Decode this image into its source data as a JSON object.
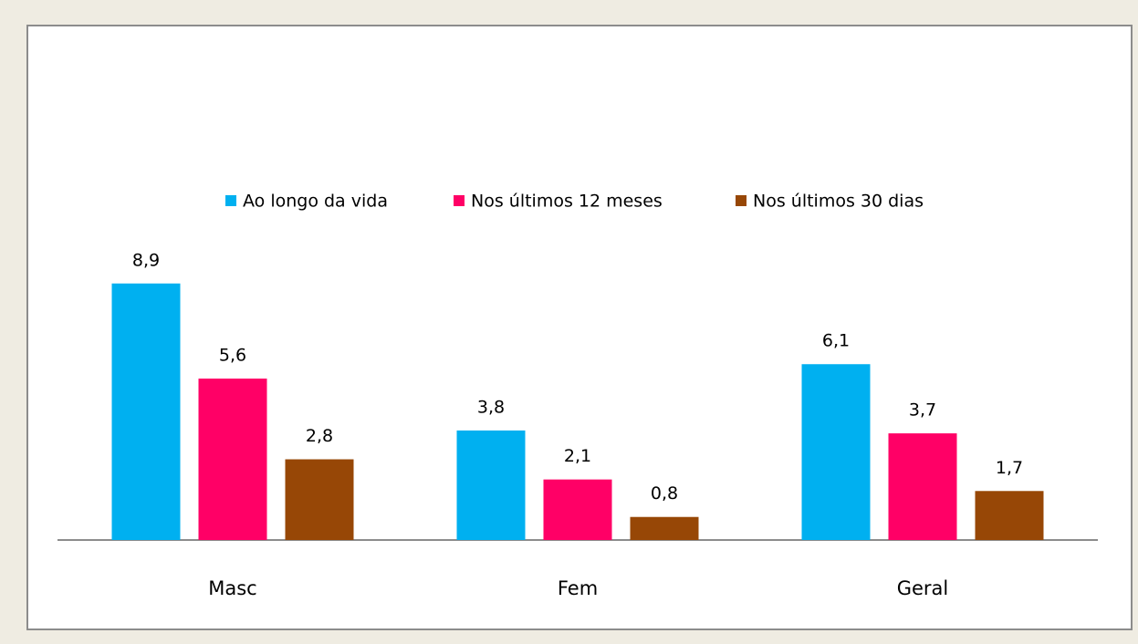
{
  "chart_data": {
    "type": "bar",
    "categories": [
      "Masc",
      "Fem",
      "Geral"
    ],
    "series": [
      {
        "name": "Ao longo da vida",
        "color": "#00b0f0",
        "values": [
          8.9,
          3.8,
          6.1
        ],
        "value_labels": [
          "8,9",
          "3,8",
          "6,1"
        ]
      },
      {
        "name": "Nos últimos 12 meses",
        "color": "#ff0066",
        "values": [
          5.6,
          2.1,
          3.7
        ],
        "value_labels": [
          "5,6",
          "2,1",
          "3,7"
        ]
      },
      {
        "name": "Nos últimos 30 dias",
        "color": "#974706",
        "values": [
          2.8,
          0.8,
          1.7
        ],
        "value_labels": [
          "2,8",
          "0,8",
          "1,7"
        ]
      }
    ],
    "legend": "top"
  }
}
